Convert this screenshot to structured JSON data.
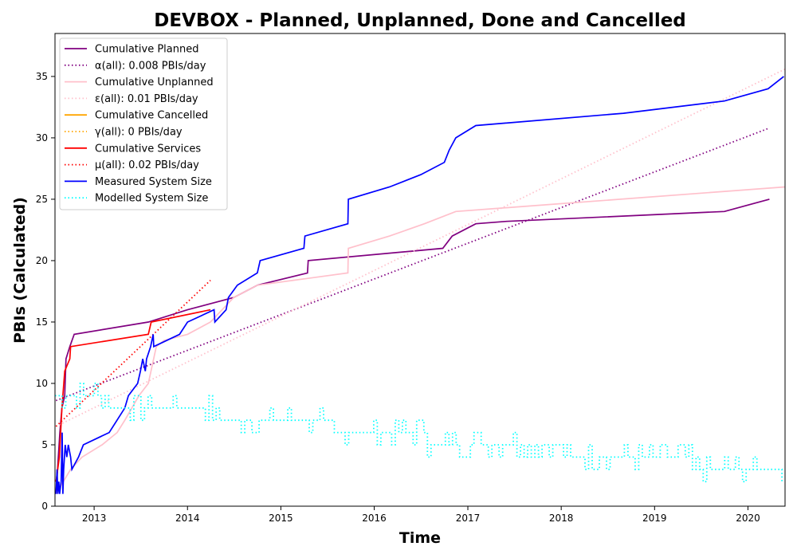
{
  "chart_data": {
    "type": "line",
    "title": "DEVBOX - Planned, Unplanned, Done  and Cancelled",
    "xlabel": "Time",
    "ylabel": "PBIs (Calculated)",
    "xlim": [
      "2012-08-01",
      "2020-05-25"
    ],
    "ylim": [
      0,
      38.5
    ],
    "x_ticks": [
      "2013",
      "2014",
      "2015",
      "2016",
      "2017",
      "2018",
      "2019",
      "2020"
    ],
    "y_ticks": [
      0,
      5,
      10,
      15,
      20,
      25,
      30,
      35
    ],
    "grid": false,
    "legend_position": "top-left",
    "series": [
      {
        "name": "Cumulative Planned",
        "color": "#800080",
        "style": "solid",
        "points": [
          [
            "2012-08-05",
            1
          ],
          [
            "2012-08-20",
            6
          ],
          [
            "2012-08-28",
            8
          ],
          [
            "2012-09-08",
            9
          ],
          [
            "2012-09-13",
            12
          ],
          [
            "2012-09-28",
            13
          ],
          [
            "2012-10-15",
            14
          ],
          [
            "2013-08-01",
            15
          ],
          [
            "2014-01-01",
            16
          ],
          [
            "2014-07-01",
            17
          ],
          [
            "2014-10-01",
            18
          ],
          [
            "2015-04-15",
            19
          ],
          [
            "2015-04-18",
            20
          ],
          [
            "2016-09-25",
            21
          ],
          [
            "2016-11-01",
            22
          ],
          [
            "2017-02-01",
            23
          ],
          [
            "2017-06-01",
            23.2
          ],
          [
            "2019-10-01",
            24
          ],
          [
            "2020-03-25",
            25
          ]
        ]
      },
      {
        "name": "α(all): 0.008 PBIs/day",
        "color": "#800080",
        "style": "dotted",
        "points": [
          [
            "2012-08-05",
            8.6
          ],
          [
            "2020-03-25",
            30.8
          ]
        ]
      },
      {
        "name": "Cumulative Unplanned",
        "color": "#FFC0CB",
        "style": "solid",
        "points": [
          [
            "2012-08-05",
            1
          ],
          [
            "2012-10-01",
            3
          ],
          [
            "2012-11-15",
            4
          ],
          [
            "2013-02-01",
            5
          ],
          [
            "2013-04-01",
            6
          ],
          [
            "2013-05-01",
            7
          ],
          [
            "2013-06-25",
            9
          ],
          [
            "2013-08-01",
            10
          ],
          [
            "2013-09-01",
            13
          ],
          [
            "2013-10-01",
            13.5
          ],
          [
            "2014-01-01",
            14
          ],
          [
            "2014-04-01",
            15
          ],
          [
            "2014-07-01",
            17
          ],
          [
            "2014-10-01",
            18
          ],
          [
            "2015-09-20",
            19
          ],
          [
            "2015-09-22",
            21
          ],
          [
            "2016-03-01",
            22
          ],
          [
            "2016-07-15",
            23
          ],
          [
            "2016-11-15",
            24
          ],
          [
            "2020-05-25",
            26
          ]
        ]
      },
      {
        "name": "ε(all): 0.01 PBIs/day",
        "color": "#FFC0CB",
        "style": "dotted",
        "points": [
          [
            "2012-08-05",
            6.5
          ],
          [
            "2020-05-25",
            35.6
          ]
        ]
      },
      {
        "name": "Cumulative Cancelled",
        "color": "#FFA500",
        "style": "solid",
        "points": []
      },
      {
        "name": "γ(all): 0 PBIs/day",
        "color": "#FFA500",
        "style": "dotted",
        "points": []
      },
      {
        "name": "Cumulative Services",
        "color": "#FF0000",
        "style": "solid",
        "points": [
          [
            "2012-08-05",
            2
          ],
          [
            "2012-08-18",
            4
          ],
          [
            "2012-08-28",
            8
          ],
          [
            "2012-09-08",
            11
          ],
          [
            "2012-09-28",
            12
          ],
          [
            "2012-10-01",
            13
          ],
          [
            "2013-08-01",
            14
          ],
          [
            "2013-08-12",
            15
          ],
          [
            "2014-04-01",
            16
          ]
        ]
      },
      {
        "name": "μ(all): 0.02 PBIs/day",
        "color": "#FF0000",
        "style": "dotted",
        "points": [
          [
            "2012-08-05",
            6.5
          ],
          [
            "2014-04-01",
            18.4
          ]
        ]
      },
      {
        "name": "Measured System Size",
        "color": "#0000FF",
        "style": "solid",
        "points": [
          [
            "2012-08-05",
            1
          ],
          [
            "2012-08-09",
            3
          ],
          [
            "2012-08-12",
            1
          ],
          [
            "2012-08-16",
            2
          ],
          [
            "2012-08-19",
            1
          ],
          [
            "2012-08-25",
            2
          ],
          [
            "2012-08-29",
            6
          ],
          [
            "2012-09-01",
            1
          ],
          [
            "2012-09-04",
            3
          ],
          [
            "2012-09-10",
            5
          ],
          [
            "2012-09-16",
            4
          ],
          [
            "2012-09-22",
            5
          ],
          [
            "2012-10-01",
            4
          ],
          [
            "2012-10-06",
            3
          ],
          [
            "2012-11-01",
            4
          ],
          [
            "2012-11-20",
            5
          ],
          [
            "2013-03-01",
            6
          ],
          [
            "2013-05-01",
            8
          ],
          [
            "2013-05-15",
            9
          ],
          [
            "2013-06-20",
            10
          ],
          [
            "2013-07-01",
            11
          ],
          [
            "2013-07-10",
            12
          ],
          [
            "2013-07-20",
            11
          ],
          [
            "2013-07-25",
            12
          ],
          [
            "2013-08-10",
            13
          ],
          [
            "2013-08-20",
            14
          ],
          [
            "2013-08-22",
            13
          ],
          [
            "2013-12-01",
            14
          ],
          [
            "2014-01-01",
            15
          ],
          [
            "2014-04-15",
            16
          ],
          [
            "2014-04-18",
            15
          ],
          [
            "2014-06-01",
            16
          ],
          [
            "2014-06-10",
            17
          ],
          [
            "2014-07-15",
            18
          ],
          [
            "2014-10-01",
            19
          ],
          [
            "2014-10-12",
            20
          ],
          [
            "2015-04-01",
            21
          ],
          [
            "2015-04-05",
            22
          ],
          [
            "2015-09-20",
            23
          ],
          [
            "2015-09-22",
            25
          ],
          [
            "2016-03-01",
            26
          ],
          [
            "2016-07-01",
            27
          ],
          [
            "2016-10-01",
            28
          ],
          [
            "2016-10-20",
            29
          ],
          [
            "2016-11-15",
            30
          ],
          [
            "2017-02-01",
            31
          ],
          [
            "2018-09-01",
            32
          ],
          [
            "2019-10-01",
            33
          ],
          [
            "2020-03-20",
            34
          ],
          [
            "2020-05-20",
            35
          ]
        ]
      },
      {
        "name": "Modelled System Size",
        "color": "#00FFFF",
        "style": "dotted",
        "trend_points": [
          [
            "2012-08-01",
            9
          ],
          [
            "2013-04-01",
            8.4
          ],
          [
            "2014-01-01",
            7.7
          ],
          [
            "2015-01-01",
            6.9
          ],
          [
            "2016-01-01",
            6
          ],
          [
            "2017-01-01",
            5.1
          ],
          [
            "2018-01-01",
            4.5
          ],
          [
            "2019-01-01",
            3.7
          ],
          [
            "2020-01-01",
            3.2
          ],
          [
            "2020-05-25",
            3
          ]
        ],
        "noise_amplitude": 1
      }
    ]
  }
}
